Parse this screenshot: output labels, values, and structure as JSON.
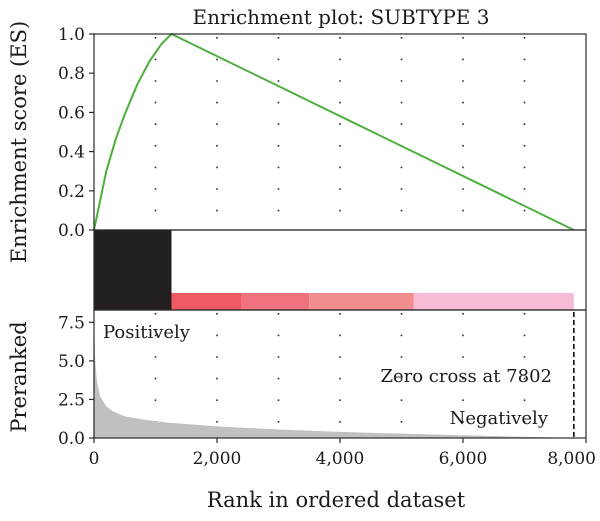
{
  "chart_data": {
    "type": "line",
    "title": "Enrichment plot: SUBTYPE 3",
    "xlabel": "Rank in ordered dataset",
    "xlim": [
      0,
      8000
    ],
    "x_ticks": [
      0,
      2000,
      4000,
      6000,
      8000
    ],
    "x_tick_labels": [
      "0",
      "2,000",
      "4,000",
      "6,000",
      "8,000"
    ],
    "es_panel": {
      "ylabel": "Enrichment score (ES)",
      "ylim": [
        0,
        1.0
      ],
      "y_ticks": [
        0.0,
        0.2,
        0.4,
        0.6,
        0.8,
        1.0
      ],
      "y_tick_labels": [
        "0.0",
        "0.2",
        "0.4",
        "0.6",
        "0.8",
        "1.0"
      ],
      "grid": true,
      "series": [
        {
          "color": "#4caf3c",
          "x": [
            0,
            80,
            200,
            350,
            500,
            700,
            900,
            1100,
            1260,
            7802
          ],
          "y": [
            0.0,
            0.12,
            0.3,
            0.46,
            0.59,
            0.74,
            0.86,
            0.95,
            1.0,
            0.0
          ]
        }
      ]
    },
    "hits_panel": {
      "hit_range": [
        0,
        1260
      ],
      "hit_color": "#231f20",
      "color_bands": [
        {
          "start": 1260,
          "end": 2400,
          "color": "#ef5a62"
        },
        {
          "start": 2400,
          "end": 3500,
          "color": "#f0727e"
        },
        {
          "start": 3500,
          "end": 5200,
          "color": "#f28d8f"
        },
        {
          "start": 5200,
          "end": 7802,
          "color": "#f6bcd5"
        }
      ]
    },
    "ranked_panel": {
      "ylabel": "Preranked",
      "ylim": [
        0,
        8.3
      ],
      "y_ticks": [
        0.0,
        2.5,
        5.0,
        7.5
      ],
      "y_tick_labels": [
        "0.0",
        "2.5",
        "5.0",
        "7.5"
      ],
      "grid": true,
      "fill_color": "#c0c0c0",
      "x": [
        0,
        20,
        50,
        100,
        200,
        300,
        500,
        800,
        1200,
        2000,
        3000,
        4000,
        5000,
        6000,
        7000,
        7802
      ],
      "y": [
        7.5,
        5.0,
        3.6,
        2.7,
        2.05,
        1.75,
        1.4,
        1.2,
        1.0,
        0.75,
        0.55,
        0.4,
        0.28,
        0.18,
        0.08,
        0.0
      ],
      "zero_cross": 7802,
      "annotations": {
        "positively": "Positively",
        "zero_cross_label": "Zero cross at 7802",
        "negatively": "Negatively"
      }
    }
  }
}
